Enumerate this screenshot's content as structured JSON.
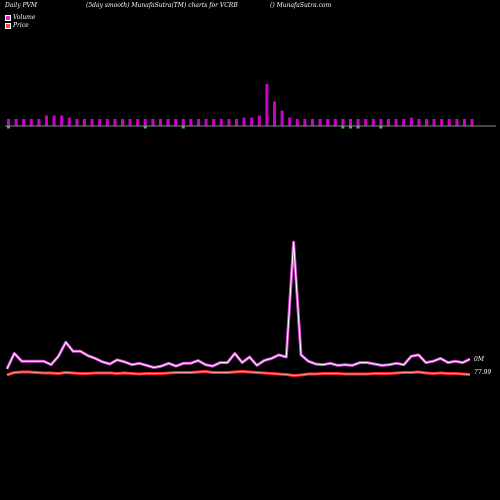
{
  "header": {
    "left": "Daily PVM",
    "middle": "(5day smooth) MunafaSutra(TM) charts for VCRB",
    "right": "() MunafaSutra.com"
  },
  "legend": {
    "volume_label": "Volume",
    "price_label": "Price",
    "volume_color": "#cc33cc",
    "price_color": "#ff4444"
  },
  "colors": {
    "background": "#000000",
    "volume_bar": "#cc00cc",
    "down_bar": "#33cc33",
    "baseline": "#888888",
    "volume_line_outer": "#cc44cc",
    "volume_line_inner": "#ffffff",
    "price_line_outer": "#ff2222",
    "price_line_inner": "#ff9999"
  },
  "chart_data": [
    {
      "type": "bar",
      "name": "volume-bars",
      "values": [
        1,
        1,
        1,
        1,
        1,
        1.5,
        1.5,
        1.5,
        1.2,
        1,
        1,
        1,
        1,
        1,
        1,
        1,
        1,
        1,
        1,
        1,
        1,
        1,
        1,
        1,
        1,
        1,
        1,
        1,
        1,
        1,
        1,
        1.2,
        1.2,
        1.5,
        6,
        3.5,
        2.2,
        1.2,
        1,
        1,
        1,
        1,
        1,
        1,
        1,
        1,
        1,
        1,
        1,
        1,
        1,
        1,
        1,
        1.2,
        1,
        1,
        1,
        1,
        1,
        1,
        1,
        1
      ],
      "down_marks": [
        0,
        18,
        23,
        44,
        45,
        46,
        49
      ],
      "ylim": [
        0,
        6
      ]
    },
    {
      "type": "line",
      "name": "volume-line",
      "values": [
        1.0,
        3.2,
        2.1,
        2.1,
        2.1,
        2.1,
        1.6,
        2.8,
        4.8,
        3.5,
        3.5,
        2.9,
        2.5,
        2.0,
        1.7,
        2.3,
        2.0,
        1.6,
        1.8,
        1.5,
        1.2,
        1.4,
        1.8,
        1.4,
        1.8,
        1.8,
        2.2,
        1.6,
        1.4,
        1.9,
        1.9,
        3.2,
        1.9,
        2.7,
        1.5,
        2.2,
        2.5,
        3.0,
        2.7,
        19.0,
        3.0,
        2.1,
        1.7,
        1.6,
        1.8,
        1.5,
        1.6,
        1.5,
        1.9,
        1.9,
        1.7,
        1.5,
        1.6,
        1.8,
        1.6,
        2.8,
        3.0,
        1.9,
        2.1,
        2.5,
        1.9,
        2.1,
        1.9,
        2.4
      ],
      "label": "0M",
      "ylim": [
        0,
        20
      ]
    },
    {
      "type": "line",
      "name": "price-line",
      "values": [
        78.0,
        78.5,
        78.6,
        78.6,
        78.5,
        78.4,
        78.4,
        78.3,
        78.5,
        78.4,
        78.3,
        78.3,
        78.4,
        78.4,
        78.4,
        78.3,
        78.4,
        78.3,
        78.2,
        78.3,
        78.3,
        78.3,
        78.4,
        78.5,
        78.5,
        78.5,
        78.6,
        78.7,
        78.5,
        78.5,
        78.5,
        78.6,
        78.7,
        78.6,
        78.5,
        78.4,
        78.3,
        78.2,
        78.1,
        77.9,
        78.0,
        78.2,
        78.2,
        78.3,
        78.3,
        78.3,
        78.2,
        78.2,
        78.2,
        78.2,
        78.3,
        78.3,
        78.3,
        78.4,
        78.5,
        78.5,
        78.6,
        78.4,
        78.3,
        78.4,
        78.3,
        78.3,
        78.2,
        78.1
      ],
      "label": "77.99",
      "ylim": [
        72,
        82
      ]
    }
  ]
}
